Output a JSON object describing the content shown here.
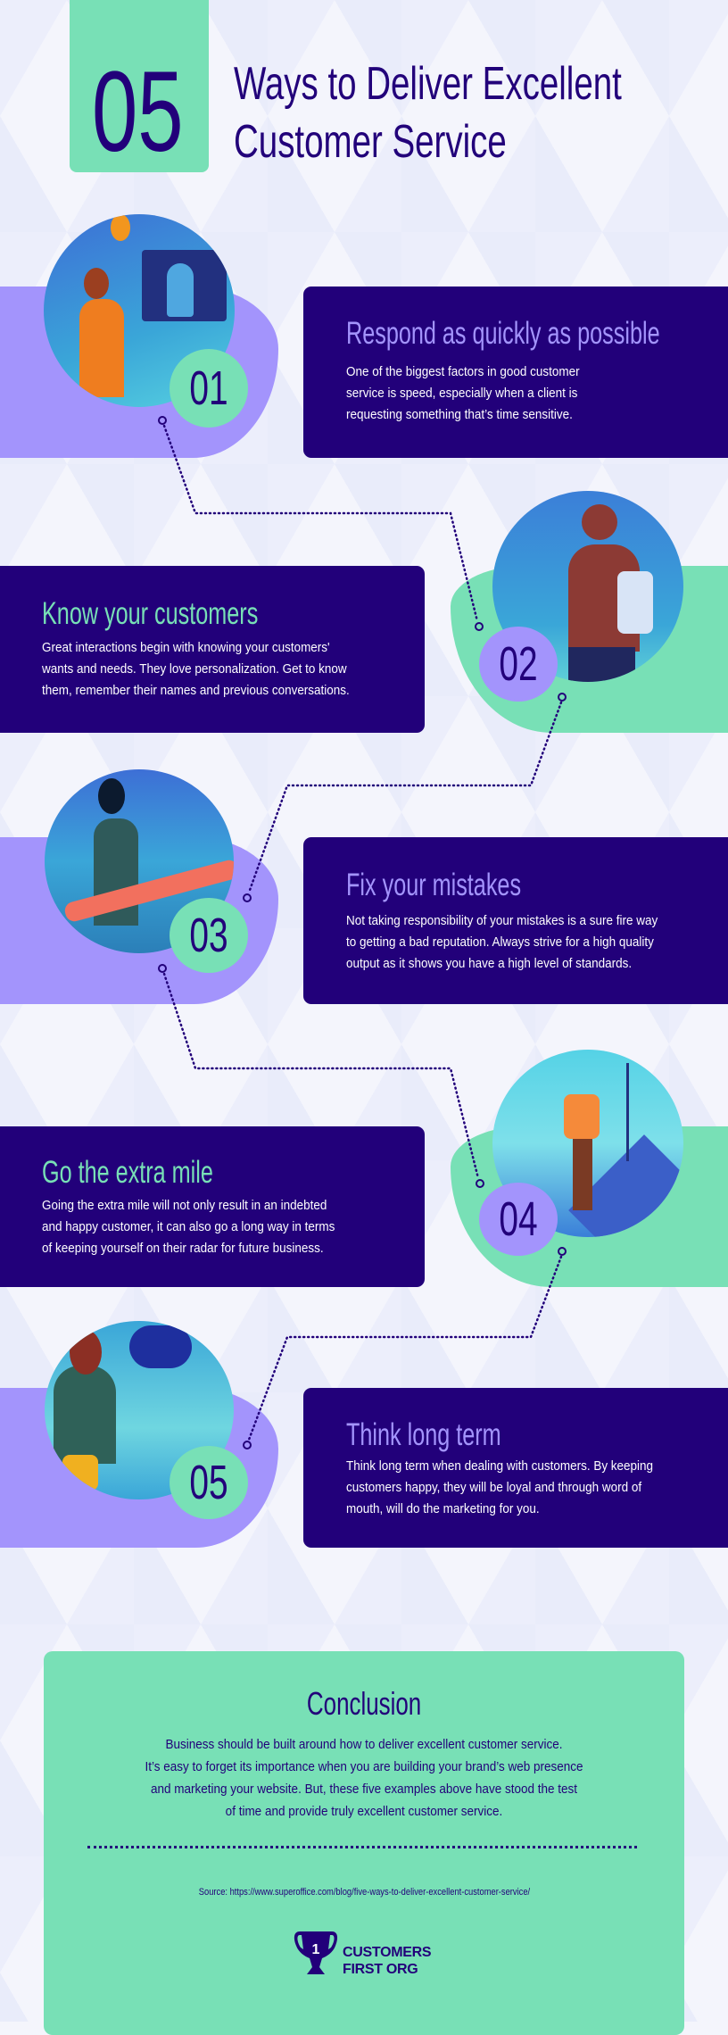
{
  "header": {
    "number": "05",
    "title_lines": [
      "Ways to Deliver Excellent",
      "Customer Service"
    ]
  },
  "colors": {
    "dark": "#22007a",
    "purple": "#a394fc",
    "green": "#78e0b6"
  },
  "steps": [
    {
      "number": "01",
      "title": "Respond as quickly as possible",
      "body": [
        "One of the biggest factors in good customer",
        "service is speed, especially when a client is",
        "requesting something that’s time sensitive."
      ],
      "illustration": "support-agent-at-computer"
    },
    {
      "number": "02",
      "title": "Know your customers",
      "body": [
        "Great interactions begin with knowing your customers'",
        "wants and needs. They love personalization. Get to know",
        "them, remember their names and previous conversations."
      ],
      "illustration": "person-with-document"
    },
    {
      "number": "03",
      "title": "Fix your mistakes",
      "body": [
        "Not taking responsibility of your mistakes is a sure fire way",
        "to getting a bad reputation. Always strive for a high quality",
        "output as it shows you have a high level of standards."
      ],
      "illustration": "woman-with-pen"
    },
    {
      "number": "04",
      "title": "Go the extra mile",
      "body": [
        "Going the extra mile will not only result in an indebted",
        "and happy customer, it can also go a long way in terms",
        "of keeping yourself on their radar for future business."
      ],
      "illustration": "hiker-with-flag"
    },
    {
      "number": "05",
      "title": "Think long term",
      "body": [
        "Think long term when dealing with customers. By keeping",
        "customers happy, they will be loyal and through word of",
        "mouth, will do the marketing for you."
      ],
      "illustration": "woman-with-phone"
    }
  ],
  "conclusion": {
    "title": "Conclusion",
    "body": [
      "Business should be built around how to deliver excellent customer service.",
      "It’s easy to forget its importance when you are building your brand’s web presence",
      "and marketing your website. But, these five examples above have stood the test",
      "of time and provide truly excellent customer service."
    ],
    "source": "Source: https://www.superoffice.com/blog/five-ways-to-deliver-excellent-customer-service/"
  },
  "logo": {
    "line1": "CUSTOMERS",
    "line2": "FIRST ORG",
    "icon": "trophy-icon",
    "badge": "1"
  }
}
